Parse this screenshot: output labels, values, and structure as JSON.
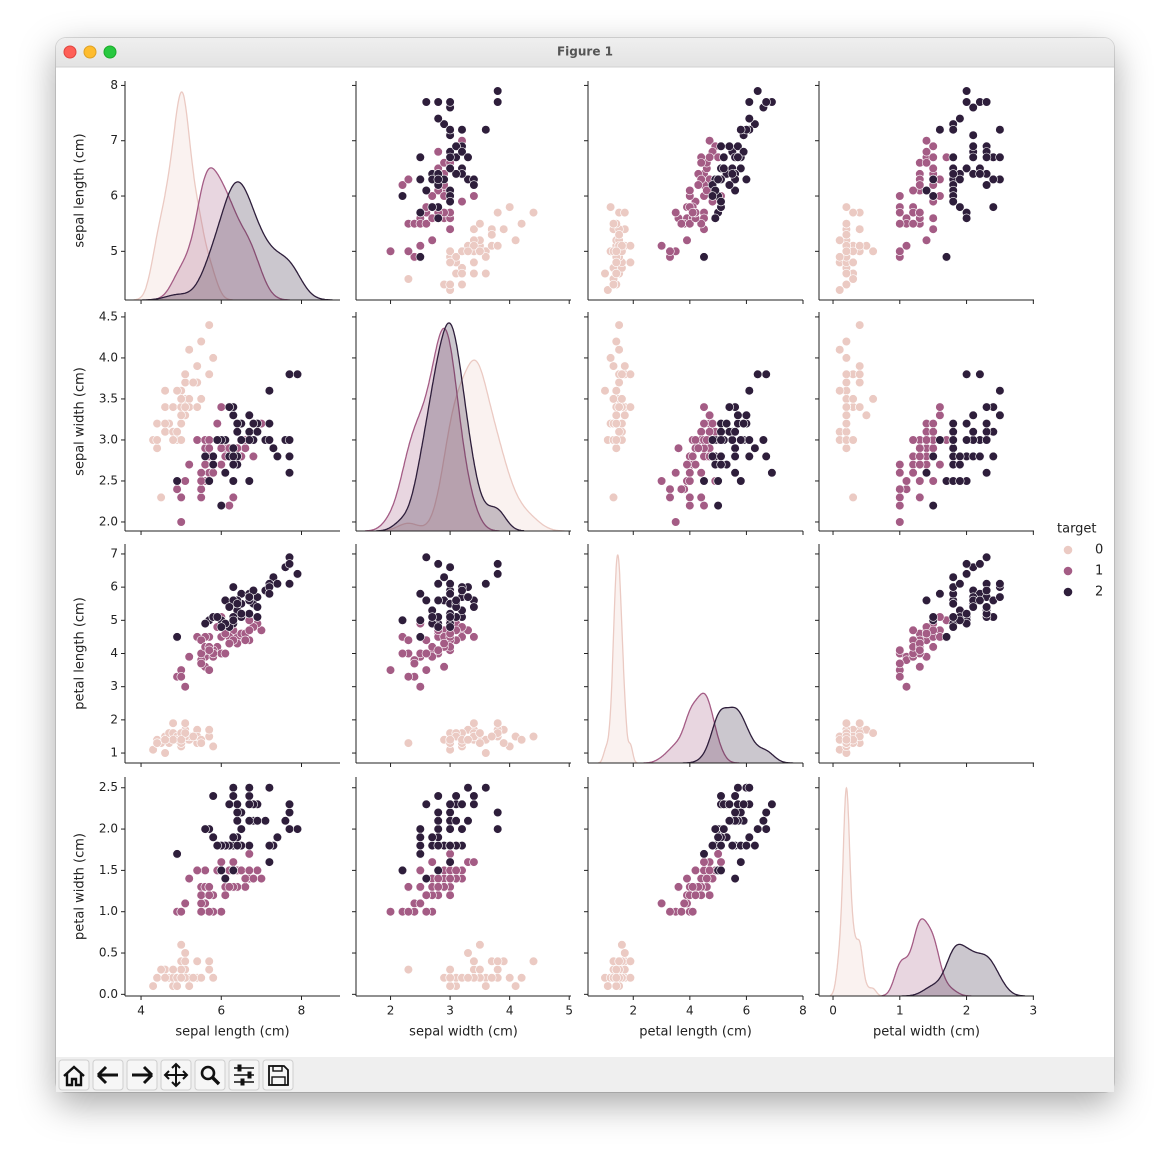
{
  "window_title": "Figure 1",
  "chart_data": {
    "type": "pairplot",
    "variables": [
      {
        "name": "sepal length (cm)",
        "xlim": [
          3.6,
          8.96
        ],
        "ylim": [
          4.12,
          8.08
        ],
        "xticks": [
          4,
          6,
          8
        ],
        "yticks": [
          5,
          6,
          7,
          8
        ],
        "values": [
          5.1,
          4.9,
          4.7,
          4.6,
          5.0,
          5.4,
          4.6,
          5.0,
          4.4,
          4.9,
          5.4,
          4.8,
          4.8,
          4.3,
          5.8,
          5.7,
          5.4,
          5.1,
          5.7,
          5.1,
          5.4,
          5.1,
          4.6,
          5.1,
          4.8,
          5.0,
          5.0,
          5.2,
          5.2,
          4.7,
          4.8,
          5.4,
          5.2,
          5.5,
          4.9,
          5.0,
          5.5,
          4.9,
          4.4,
          5.1,
          5.0,
          4.5,
          4.4,
          5.0,
          5.1,
          4.8,
          5.1,
          4.6,
          5.3,
          5.0,
          7.0,
          6.4,
          6.9,
          5.5,
          6.5,
          5.7,
          6.3,
          4.9,
          6.6,
          5.2,
          5.0,
          5.9,
          6.0,
          6.1,
          5.6,
          6.7,
          5.6,
          5.8,
          6.2,
          5.6,
          5.9,
          6.1,
          6.3,
          6.1,
          6.4,
          6.6,
          6.8,
          6.7,
          6.0,
          5.7,
          5.5,
          5.5,
          5.8,
          6.0,
          5.4,
          6.0,
          6.7,
          6.3,
          5.6,
          5.5,
          5.5,
          6.1,
          5.8,
          5.0,
          5.6,
          5.7,
          5.7,
          6.2,
          5.1,
          5.7,
          6.3,
          5.8,
          7.1,
          6.3,
          6.5,
          7.6,
          4.9,
          7.3,
          6.7,
          7.2,
          6.5,
          6.4,
          6.8,
          5.7,
          5.8,
          6.4,
          6.5,
          7.7,
          7.7,
          6.0,
          6.9,
          5.6,
          7.7,
          6.3,
          6.7,
          7.2,
          6.2,
          6.1,
          6.4,
          7.2,
          7.4,
          7.9,
          6.4,
          6.3,
          6.1,
          7.7,
          6.3,
          6.4,
          6.0,
          6.9,
          6.7,
          6.9,
          5.8,
          6.8,
          6.7,
          6.7,
          6.3,
          6.5,
          6.2,
          5.9
        ]
      },
      {
        "name": "sepal width (cm)",
        "xlim": [
          1.42,
          5.03
        ],
        "ylim": [
          1.89,
          4.56
        ],
        "xticks": [
          2,
          3,
          4,
          5
        ],
        "yticks": [
          {
            "value": 2,
            "label": "2.0"
          },
          2.5,
          {
            "value": 3,
            "label": "3.0"
          },
          3.5,
          {
            "value": 4,
            "label": "4.0"
          },
          4.5
        ],
        "values": [
          3.5,
          3.0,
          3.2,
          3.1,
          3.6,
          3.9,
          3.4,
          3.4,
          2.9,
          3.1,
          3.7,
          3.4,
          3.0,
          3.0,
          4.0,
          4.4,
          3.9,
          3.5,
          3.8,
          3.8,
          3.4,
          3.7,
          3.6,
          3.3,
          3.4,
          3.0,
          3.4,
          3.5,
          3.4,
          3.2,
          3.1,
          3.4,
          4.1,
          4.2,
          3.1,
          3.2,
          3.5,
          3.6,
          3.0,
          3.4,
          3.5,
          2.3,
          3.2,
          3.5,
          3.8,
          3.0,
          3.8,
          3.2,
          3.7,
          3.3,
          3.2,
          3.2,
          3.1,
          2.3,
          2.8,
          2.8,
          3.3,
          2.4,
          2.9,
          2.7,
          2.0,
          3.0,
          2.2,
          2.9,
          2.9,
          3.1,
          3.0,
          2.7,
          2.2,
          2.5,
          3.2,
          2.8,
          2.5,
          2.8,
          2.9,
          3.0,
          2.8,
          3.0,
          2.9,
          2.6,
          2.4,
          2.4,
          2.7,
          2.7,
          3.0,
          3.4,
          3.1,
          2.3,
          3.0,
          2.5,
          2.6,
          3.0,
          2.6,
          2.3,
          2.7,
          3.0,
          2.9,
          2.9,
          2.5,
          2.8,
          3.3,
          2.7,
          3.0,
          2.9,
          3.0,
          3.0,
          2.5,
          2.9,
          2.5,
          3.6,
          3.2,
          2.7,
          3.0,
          2.5,
          2.8,
          3.2,
          3.0,
          3.8,
          2.6,
          2.2,
          3.2,
          2.8,
          2.8,
          2.7,
          3.3,
          3.2,
          2.8,
          3.0,
          2.8,
          3.0,
          2.8,
          3.8,
          2.8,
          2.8,
          2.6,
          3.0,
          3.4,
          3.1,
          3.0,
          3.1,
          3.1,
          3.1,
          2.7,
          3.2,
          3.3,
          3.0,
          2.5,
          3.0,
          3.4,
          3.0
        ]
      },
      {
        "name": "petal length (cm)",
        "xlim": [
          0.4,
          8.0
        ],
        "ylim": [
          0.7,
          7.3
        ],
        "xticks": [
          2,
          4,
          6,
          8
        ],
        "yticks": [
          1,
          2,
          3,
          4,
          5,
          6,
          7
        ],
        "values": [
          1.4,
          1.4,
          1.3,
          1.5,
          1.4,
          1.7,
          1.4,
          1.5,
          1.4,
          1.5,
          1.5,
          1.6,
          1.4,
          1.1,
          1.2,
          1.5,
          1.3,
          1.4,
          1.7,
          1.5,
          1.7,
          1.5,
          1.0,
          1.7,
          1.9,
          1.6,
          1.6,
          1.5,
          1.4,
          1.6,
          1.6,
          1.5,
          1.5,
          1.4,
          1.5,
          1.2,
          1.3,
          1.4,
          1.3,
          1.5,
          1.3,
          1.3,
          1.3,
          1.6,
          1.9,
          1.4,
          1.6,
          1.4,
          1.5,
          1.4,
          4.7,
          4.5,
          4.9,
          4.0,
          4.6,
          4.5,
          4.7,
          3.3,
          4.6,
          3.9,
          3.5,
          4.2,
          4.0,
          4.7,
          3.6,
          4.4,
          4.5,
          4.1,
          4.5,
          3.9,
          4.8,
          4.0,
          4.9,
          4.7,
          4.3,
          4.4,
          4.8,
          5.0,
          4.5,
          3.5,
          3.8,
          3.7,
          3.9,
          5.1,
          4.5,
          4.5,
          4.7,
          4.4,
          4.1,
          4.0,
          4.4,
          4.6,
          4.0,
          3.3,
          4.2,
          4.2,
          4.2,
          4.3,
          3.0,
          4.1,
          6.0,
          5.1,
          5.9,
          5.6,
          5.8,
          6.6,
          4.5,
          6.3,
          5.8,
          6.1,
          5.1,
          5.3,
          5.5,
          5.0,
          5.1,
          5.3,
          5.5,
          6.7,
          6.9,
          5.0,
          5.7,
          4.9,
          6.7,
          4.9,
          5.7,
          6.0,
          4.8,
          4.9,
          5.6,
          5.8,
          6.1,
          6.4,
          5.6,
          5.1,
          5.6,
          6.1,
          5.6,
          5.5,
          4.8,
          5.4,
          5.6,
          5.1,
          5.1,
          5.9,
          5.7,
          5.2,
          5.0,
          5.2,
          5.4,
          5.1
        ]
      },
      {
        "name": "petal width (cm)",
        "xlim": [
          -0.21,
          3.01
        ],
        "ylim": [
          -0.02,
          2.63
        ],
        "xticks": [
          0,
          1,
          2,
          3
        ],
        "yticks": [
          {
            "value": 0,
            "label": "0.0"
          },
          0.5,
          {
            "value": 1,
            "label": "1.0"
          },
          1.5,
          {
            "value": 2,
            "label": "2.0"
          },
          2.5
        ],
        "values": [
          0.2,
          0.2,
          0.2,
          0.2,
          0.2,
          0.4,
          0.3,
          0.2,
          0.2,
          0.1,
          0.2,
          0.2,
          0.1,
          0.1,
          0.2,
          0.4,
          0.4,
          0.3,
          0.3,
          0.3,
          0.2,
          0.4,
          0.2,
          0.5,
          0.2,
          0.2,
          0.4,
          0.2,
          0.2,
          0.2,
          0.2,
          0.4,
          0.1,
          0.2,
          0.2,
          0.2,
          0.2,
          0.1,
          0.2,
          0.2,
          0.3,
          0.3,
          0.2,
          0.6,
          0.4,
          0.3,
          0.2,
          0.2,
          0.2,
          0.2,
          1.4,
          1.5,
          1.5,
          1.3,
          1.5,
          1.3,
          1.6,
          1.0,
          1.3,
          1.4,
          1.0,
          1.5,
          1.0,
          1.4,
          1.3,
          1.4,
          1.5,
          1.0,
          1.5,
          1.1,
          1.8,
          1.3,
          1.5,
          1.2,
          1.3,
          1.4,
          1.4,
          1.7,
          1.5,
          1.0,
          1.1,
          1.0,
          1.2,
          1.6,
          1.5,
          1.6,
          1.5,
          1.3,
          1.3,
          1.3,
          1.2,
          1.4,
          1.2,
          1.0,
          1.3,
          1.2,
          1.3,
          1.3,
          1.1,
          1.3,
          2.5,
          1.9,
          2.1,
          1.8,
          2.2,
          2.1,
          1.7,
          1.8,
          1.8,
          2.5,
          2.0,
          1.9,
          2.1,
          2.0,
          2.4,
          2.3,
          1.8,
          2.2,
          2.3,
          1.5,
          2.3,
          2.0,
          2.0,
          1.8,
          2.1,
          1.8,
          1.8,
          1.8,
          2.1,
          1.6,
          1.9,
          2.0,
          2.2,
          1.5,
          1.4,
          2.3,
          2.4,
          1.8,
          1.8,
          2.1,
          2.4,
          2.3,
          1.9,
          2.3,
          2.5,
          2.3,
          1.9,
          2.0,
          2.3,
          1.8
        ]
      }
    ],
    "hue": {
      "name": "target",
      "levels": [
        0,
        1,
        2
      ],
      "colors": [
        "#ebcac3",
        "#a45c85",
        "#2e1e3b"
      ],
      "values": [
        0,
        0,
        0,
        0,
        0,
        0,
        0,
        0,
        0,
        0,
        0,
        0,
        0,
        0,
        0,
        0,
        0,
        0,
        0,
        0,
        0,
        0,
        0,
        0,
        0,
        0,
        0,
        0,
        0,
        0,
        0,
        0,
        0,
        0,
        0,
        0,
        0,
        0,
        0,
        0,
        0,
        0,
        0,
        0,
        0,
        0,
        0,
        0,
        0,
        0,
        1,
        1,
        1,
        1,
        1,
        1,
        1,
        1,
        1,
        1,
        1,
        1,
        1,
        1,
        1,
        1,
        1,
        1,
        1,
        1,
        1,
        1,
        1,
        1,
        1,
        1,
        1,
        1,
        1,
        1,
        1,
        1,
        1,
        1,
        1,
        1,
        1,
        1,
        1,
        1,
        1,
        1,
        1,
        1,
        1,
        1,
        1,
        1,
        1,
        1,
        2,
        2,
        2,
        2,
        2,
        2,
        2,
        2,
        2,
        2,
        2,
        2,
        2,
        2,
        2,
        2,
        2,
        2,
        2,
        2,
        2,
        2,
        2,
        2,
        2,
        2,
        2,
        2,
        2,
        2,
        2,
        2,
        2,
        2,
        2,
        2,
        2,
        2,
        2,
        2,
        2,
        2,
        2,
        2,
        2,
        2,
        2,
        2,
        2,
        2
      ]
    },
    "legend": "right"
  }
}
